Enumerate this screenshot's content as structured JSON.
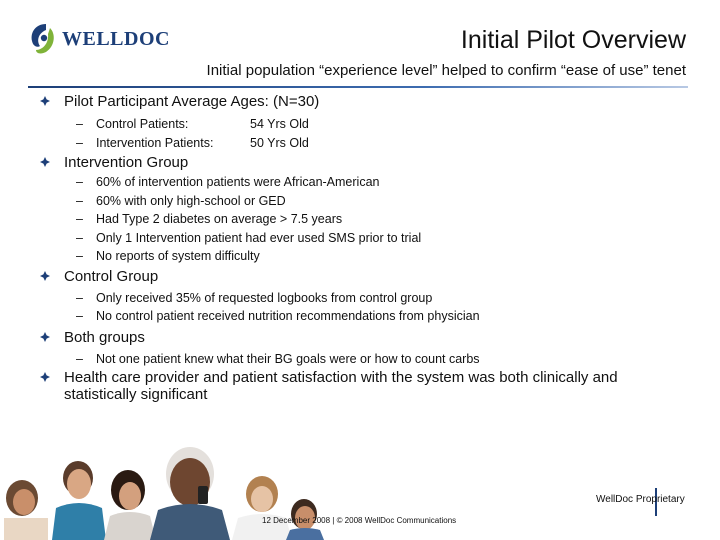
{
  "header": {
    "logo_text": "WELLDOC",
    "title": "Initial Pilot Overview",
    "subtitle": "Initial population “experience level” helped to confirm “ease of use” tenet"
  },
  "bullets": [
    {
      "label": "Pilot Participant Average Ages: (N=30)",
      "items": [
        {
          "label": "Control Patients:",
          "value": "54 Yrs Old"
        },
        {
          "label": "Intervention Patients:",
          "value": "50 Yrs Old"
        }
      ]
    },
    {
      "label": "Intervention Group",
      "items": [
        {
          "label": "60% of intervention patients were African-American"
        },
        {
          "label": "60% with only high-school or GED"
        },
        {
          "label": "Had Type 2 diabetes on average > 7.5 years"
        },
        {
          "label": "Only 1 Intervention patient had ever used SMS prior to trial"
        },
        {
          "label": "No reports of system difficulty"
        }
      ]
    },
    {
      "label": "Control Group",
      "items": [
        {
          "label": "Only received 35% of requested logbooks from control group"
        },
        {
          "label": "No control patient received nutrition recommendations from physician"
        }
      ]
    },
    {
      "label": "Both groups",
      "items": [
        {
          "label": "Not one patient knew what their BG goals were or how to count carbs"
        }
      ]
    },
    {
      "label": "Health care provider and patient satisfaction with the system was both clinically and statistically significant",
      "items": []
    }
  ],
  "footer": {
    "proprietary": "WellDoc Proprietary",
    "copyright": "12 December 2008 | © 2008 WellDoc Communications"
  },
  "colors": {
    "brand_blue": "#1d3f78",
    "logo_green": "#7fb339"
  },
  "icons": {
    "bullet": "diamond-bullet-icon",
    "logo": "welldoc-logo-icon"
  }
}
